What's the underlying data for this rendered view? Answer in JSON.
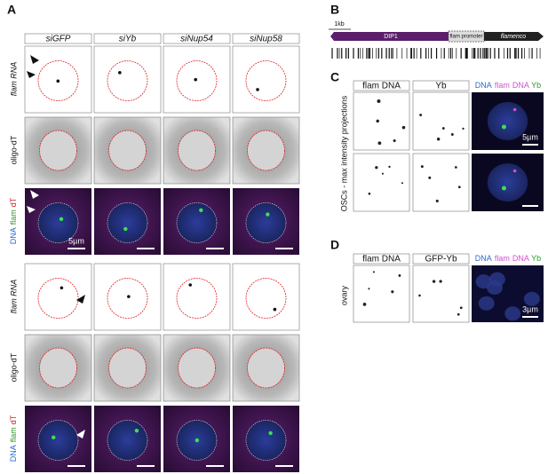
{
  "panel_a": {
    "letter": "A",
    "columns": [
      "siGFP",
      "siYb",
      "siNup54",
      "siNup58"
    ],
    "blocks": [
      {
        "row_labels": [
          "flam RNA",
          "oligo-dT"
        ],
        "merge_label": [
          "DNA",
          "flam",
          "dT"
        ],
        "scale_bar": "5µm"
      },
      {
        "row_labels": [
          "flam RNA",
          "oligo-dT"
        ],
        "merge_label": [
          "DNA",
          "flam",
          "dT"
        ]
      }
    ]
  },
  "panel_b": {
    "letter": "B",
    "scale": "1kb",
    "segments": [
      "DIP1",
      "flam promoter",
      "flamenco"
    ]
  },
  "panel_c": {
    "letter": "C",
    "columns": [
      "flam DNA",
      "Yb"
    ],
    "merge_label": [
      "DNA",
      "flam",
      "DNA",
      "Yb"
    ],
    "side_label": "OSCs - max intensity projections",
    "scale_bar": "5µm"
  },
  "panel_d": {
    "letter": "D",
    "columns": [
      "flam DNA",
      "GFP-Yb"
    ],
    "merge_label": [
      "DNA",
      "flam",
      "DNA",
      "Yb"
    ],
    "side_label": "ovary",
    "scale_bar": "3µm"
  }
}
